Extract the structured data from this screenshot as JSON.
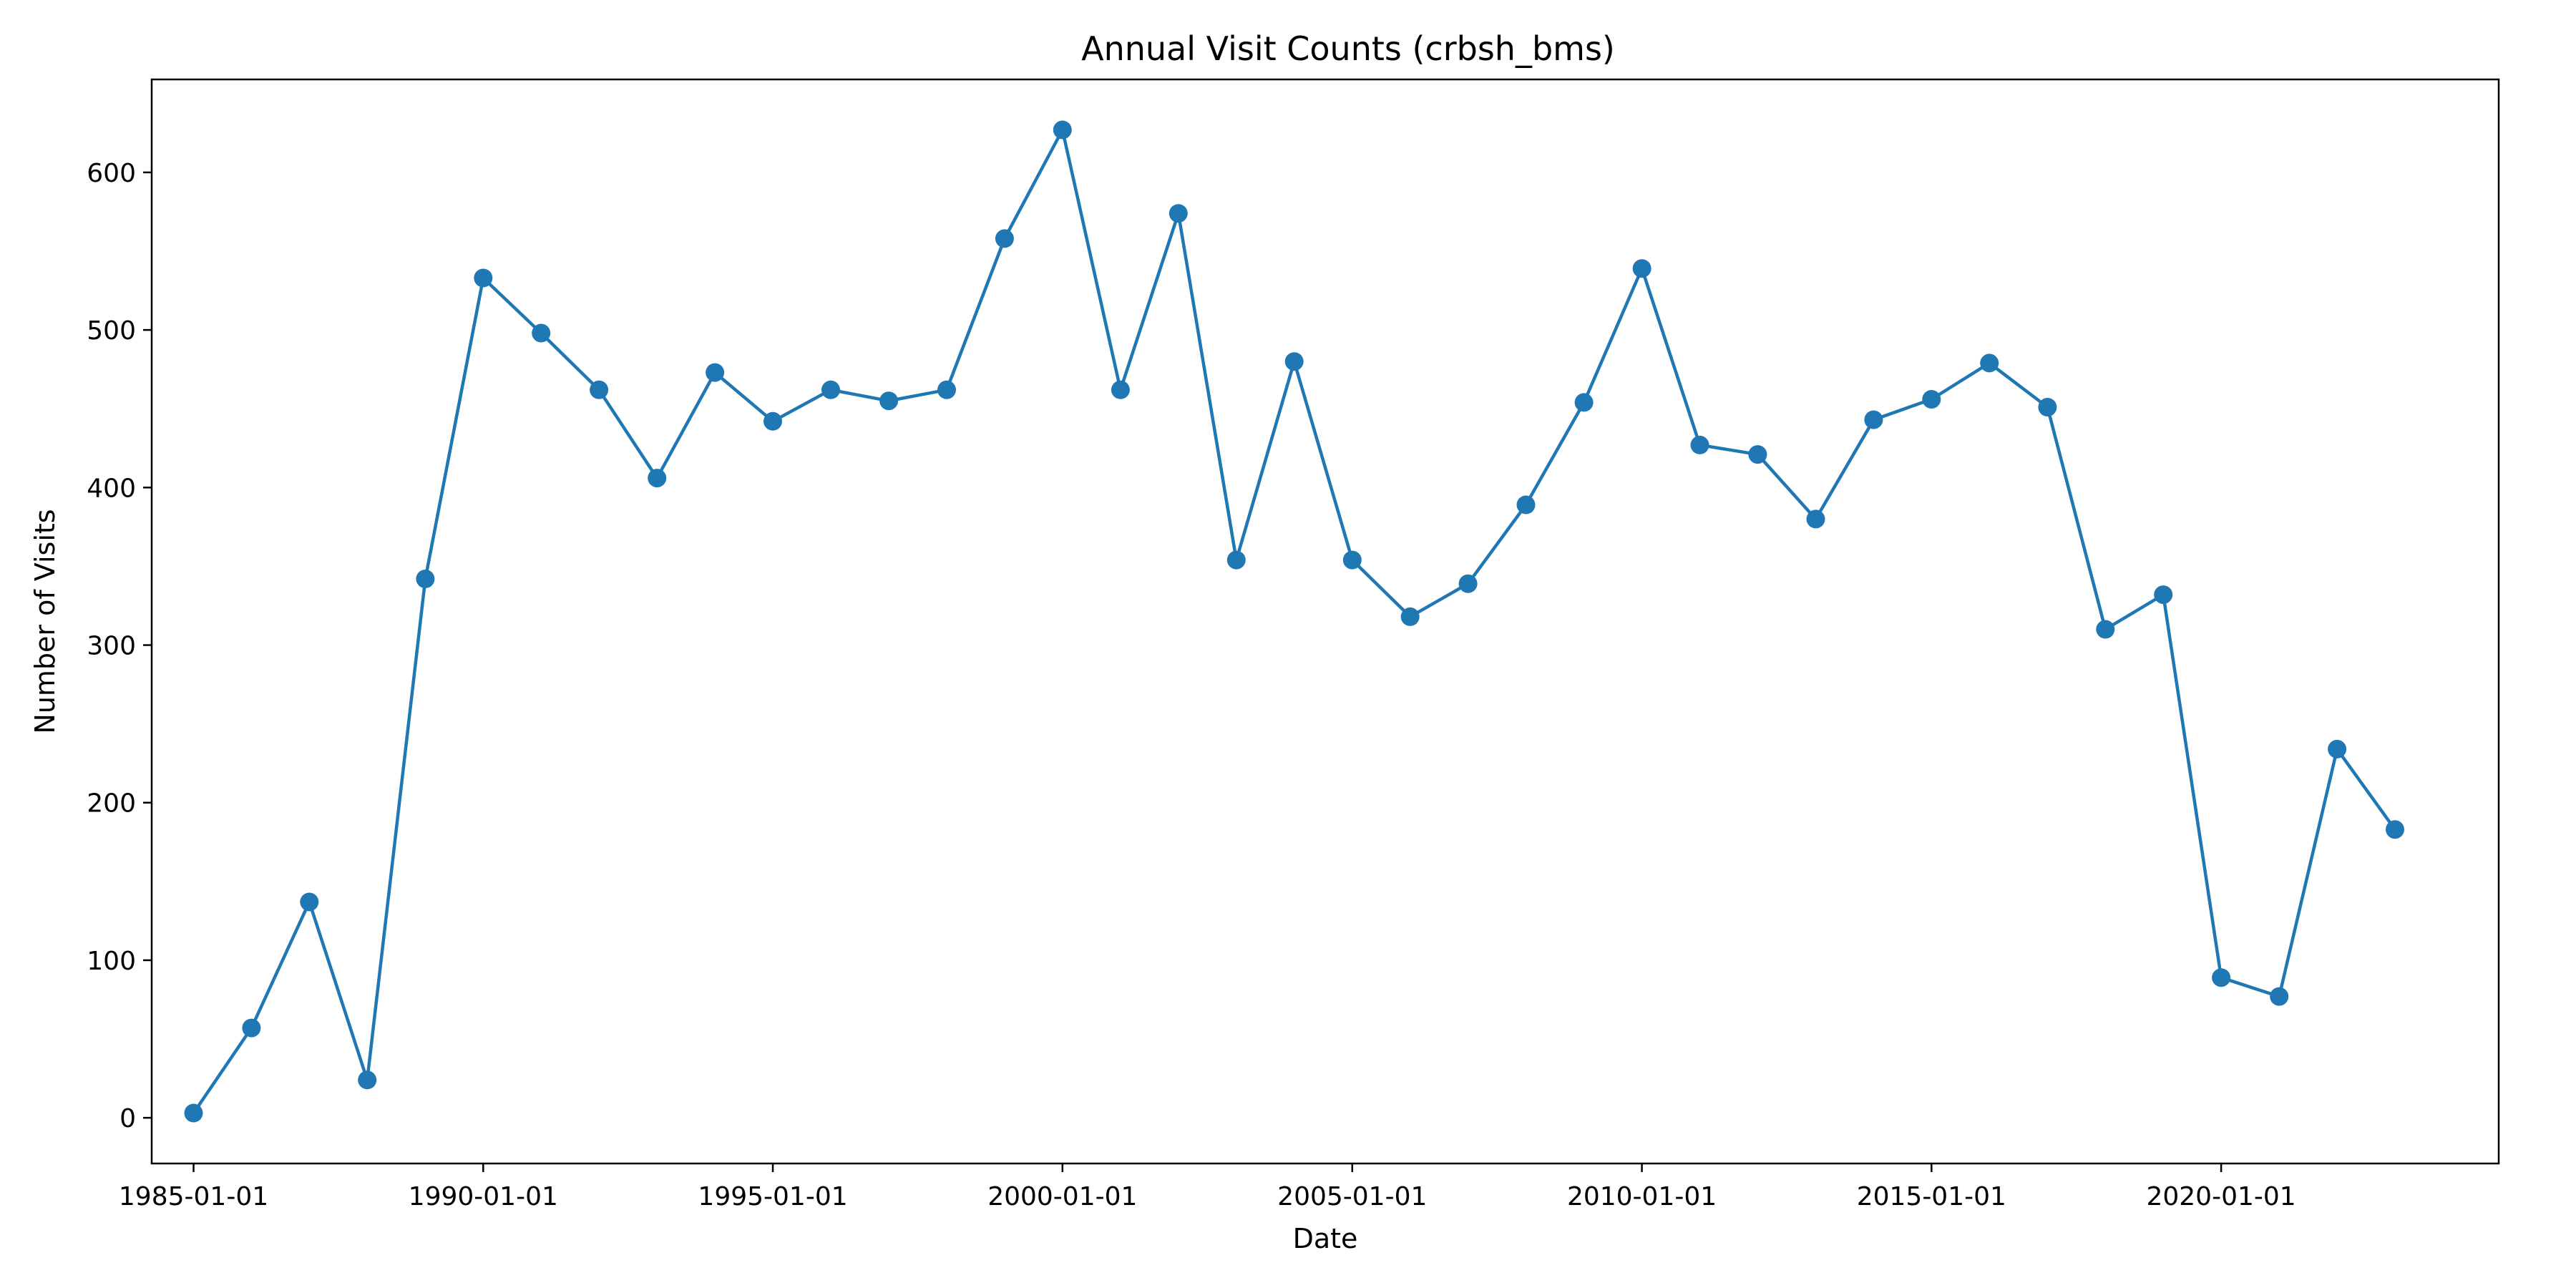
{
  "chart_data": {
    "type": "line",
    "title": "Annual Visit Counts (crbsh_bms)",
    "xlabel": "Date",
    "ylabel": "Number of Visits",
    "x": [
      "1985-01-01",
      "1986-01-01",
      "1987-01-01",
      "1988-01-01",
      "1989-01-01",
      "1990-01-01",
      "1991-01-01",
      "1992-01-01",
      "1993-01-01",
      "1994-01-01",
      "1995-01-01",
      "1996-01-01",
      "1997-01-01",
      "1998-01-01",
      "1999-01-01",
      "2000-01-01",
      "2001-01-01",
      "2002-01-01",
      "2003-01-01",
      "2004-01-01",
      "2005-01-01",
      "2006-01-01",
      "2007-01-01",
      "2008-01-01",
      "2009-01-01",
      "2010-01-01",
      "2011-01-01",
      "2012-01-01",
      "2013-01-01",
      "2014-01-01",
      "2015-01-01",
      "2016-01-01",
      "2017-01-01",
      "2018-01-01",
      "2019-01-01",
      "2020-01-01",
      "2021-01-01",
      "2022-01-01",
      "2023-01-01"
    ],
    "series": [
      {
        "values": [
          3,
          57,
          137,
          24,
          342,
          533,
          498,
          462,
          406,
          473,
          442,
          462,
          455,
          462,
          558,
          627,
          462,
          574,
          354,
          480,
          354,
          318,
          339,
          389,
          454,
          539,
          427,
          421,
          380,
          443,
          456,
          479,
          451,
          310,
          332,
          89,
          77,
          234,
          183
        ],
        "color": "#1f77b4",
        "marker": "circle"
      }
    ],
    "xlim": [
      "1984-04-12",
      "2024-10-16"
    ],
    "ylim": [
      -29,
      659
    ],
    "x_ticks": [
      "1985-01-01",
      "1990-01-01",
      "1995-01-01",
      "2000-01-01",
      "2005-01-01",
      "2010-01-01",
      "2015-01-01",
      "2020-01-01"
    ],
    "y_ticks": [
      0,
      100,
      200,
      300,
      400,
      500,
      600
    ],
    "grid": false,
    "legend": "none"
  }
}
